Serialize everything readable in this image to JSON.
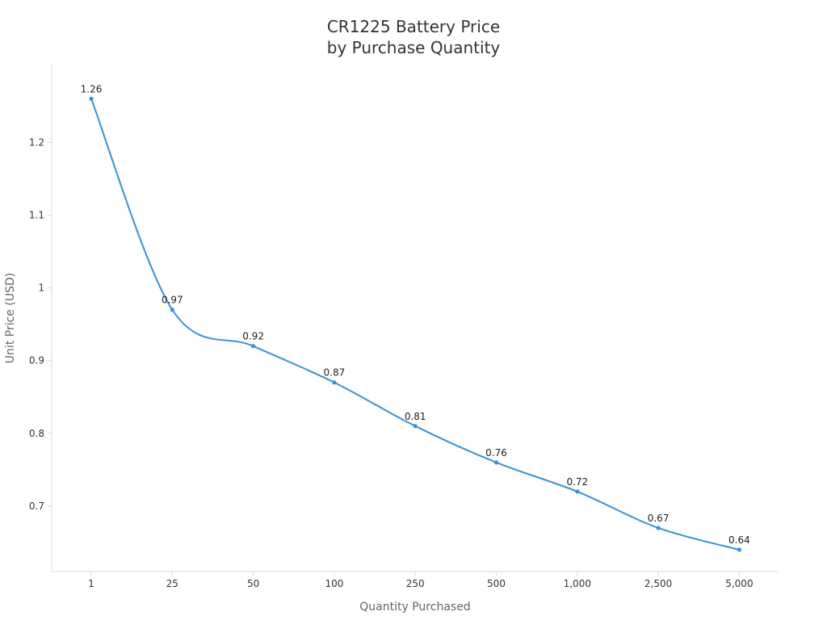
{
  "chart_data": {
    "type": "line",
    "title_lines": [
      "CR1225 Battery Price",
      "by Purchase Quantity"
    ],
    "xlabel": "Quantity Purchased",
    "ylabel": "Unit Price (USD)",
    "categories": [
      "1",
      "25",
      "50",
      "100",
      "250",
      "500",
      "1,000",
      "2,500",
      "5,000"
    ],
    "series": [
      {
        "values": [
          1.26,
          0.97,
          0.92,
          0.87,
          0.81,
          0.76,
          0.72,
          0.67,
          0.64
        ]
      }
    ],
    "data_labels": [
      "1.26",
      "0.97",
      "0.92",
      "0.87",
      "0.81",
      "0.76",
      "0.72",
      "0.67",
      "0.64"
    ],
    "yticks": [
      0.7,
      0.8,
      0.9,
      1,
      1.1,
      1.2
    ],
    "ytick_labels": [
      "0.7",
      "0.8",
      "0.9",
      "1",
      "1.1",
      "1.2"
    ],
    "ylim": [
      0.61,
      1.307
    ],
    "grid": false,
    "line_style": "smooth",
    "colors": {
      "line": "#3592e0",
      "axis": "#d9d9d9",
      "text": "#333333"
    }
  }
}
